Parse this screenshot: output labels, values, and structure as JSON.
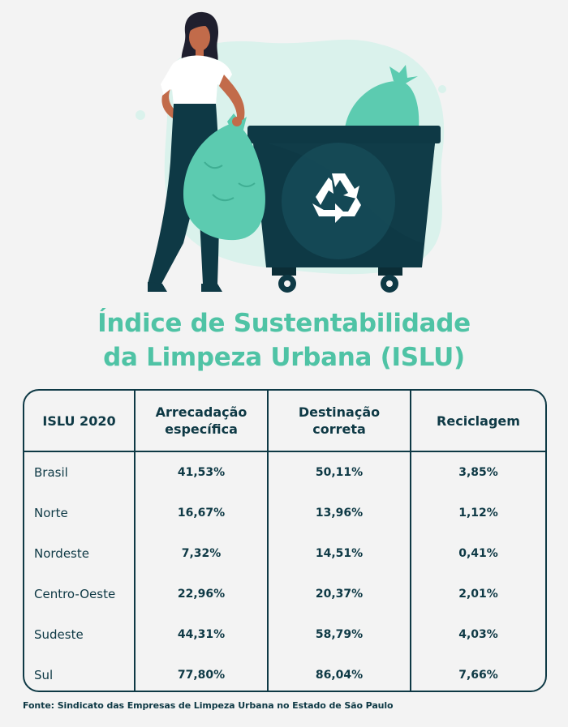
{
  "title_line1": "Índice de Sustentabilidade",
  "title_line2": "da Limpeza Urbana (ISLU)",
  "table": {
    "headers": [
      "ISLU 2020",
      "Arrecadação específica",
      "Destinação correta",
      "Reciclagem"
    ],
    "rows": [
      {
        "region": "Brasil",
        "arrecadacao": "41,53%",
        "destinacao": "50,11%",
        "reciclagem": "3,85%"
      },
      {
        "region": "Norte",
        "arrecadacao": "16,67%",
        "destinacao": "13,96%",
        "reciclagem": "1,12%"
      },
      {
        "region": "Nordeste",
        "arrecadacao": "7,32%",
        "destinacao": "14,51%",
        "reciclagem": "0,41%"
      },
      {
        "region": "Centro-Oeste",
        "arrecadacao": "22,96%",
        "destinacao": "20,37%",
        "reciclagem": "2,01%"
      },
      {
        "region": "Sudeste",
        "arrecadacao": "44,31%",
        "destinacao": "58,79%",
        "reciclagem": "4,03%"
      },
      {
        "region": "Sul",
        "arrecadacao": "77,80%",
        "destinacao": "86,04%",
        "reciclagem": "7,66%"
      }
    ]
  },
  "source": "Fonte: Sindicato das Empresas de Limpeza Urbana no Estado de São Paulo",
  "colors": {
    "accent": "#4fc3a5",
    "dark": "#0e3945",
    "background": "#f3f3f3",
    "bag": "#5ccbb0",
    "blob": "#daf2ec"
  },
  "icons": [
    "recycle-icon"
  ]
}
